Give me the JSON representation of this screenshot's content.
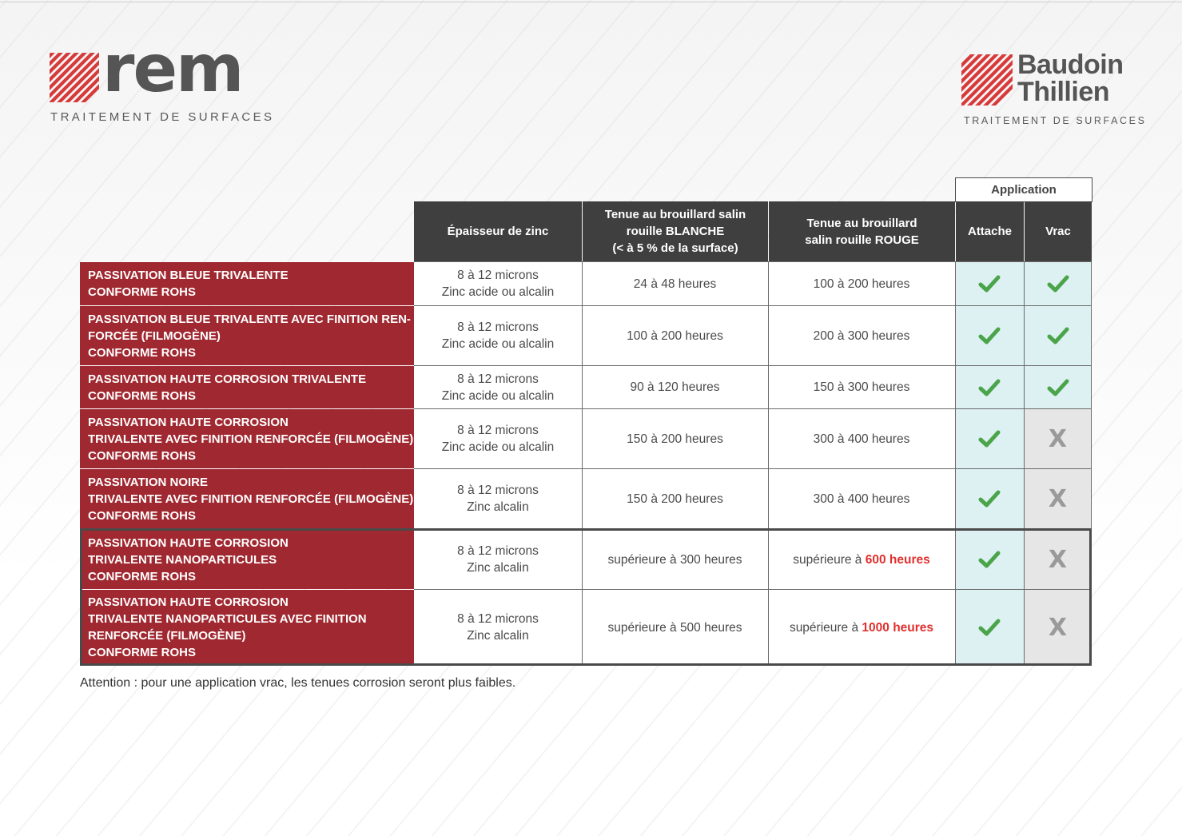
{
  "logos": {
    "rem": {
      "word": "rem",
      "subtitle": "TRAITEMENT DE SURFACES"
    },
    "baudoin": {
      "line1": "Baudoin",
      "line2": "Thillien",
      "subtitle": "TRAITEMENT DE SURFACES"
    }
  },
  "colors": {
    "brand_red": "#a02830",
    "header_dark": "#3f3f3f",
    "check_green": "#4aa54a",
    "highlight_red": "#e0302e",
    "application_bg": "#ddf0f2",
    "not_applicable_bg": "#e6e6e6"
  },
  "table": {
    "application_group": "Application",
    "headers": {
      "zinc": "Épaisseur de zinc",
      "blanche": [
        "Tenue au brouillard salin",
        "rouille BLANCHE",
        "(< à 5 % de la surface)"
      ],
      "rouge": [
        "Tenue au brouillard",
        "salin rouille ROUGE"
      ],
      "attache": "Attache",
      "vrac": "Vrac"
    },
    "rows": [
      {
        "name": [
          "PASSIVATION BLEUE TRIVALENTE",
          "CONFORME ROHS"
        ],
        "zinc": [
          "8 à 12 microns",
          "Zinc acide ou alcalin"
        ],
        "blanche": "24 à 48 heures",
        "rouge_prefix": "100 à 200 heures",
        "rouge_strong": "",
        "attache": "check",
        "vrac": "check"
      },
      {
        "name": [
          "PASSIVATION BLEUE TRIVALENTE AVEC FINITION REN-",
          "FORCÉE (FILMOGÈNE)",
          "CONFORME ROHS"
        ],
        "zinc": [
          "8 à 12 microns",
          "Zinc acide ou alcalin"
        ],
        "blanche": "100 à 200 heures",
        "rouge_prefix": "200 à 300 heures",
        "rouge_strong": "",
        "attache": "check",
        "vrac": "check"
      },
      {
        "name": [
          "PASSIVATION HAUTE CORROSION TRIVALENTE",
          "CONFORME ROHS"
        ],
        "zinc": [
          "8 à 12 microns",
          "Zinc acide ou alcalin"
        ],
        "blanche": "90 à 120 heures",
        "rouge_prefix": "150 à 300 heures",
        "rouge_strong": "",
        "attache": "check",
        "vrac": "check"
      },
      {
        "name": [
          "PASSIVATION HAUTE CORROSION",
          "TRIVALENTE AVEC FINITION RENFORCÉE (FILMOGÈNE)",
          "CONFORME ROHS"
        ],
        "zinc": [
          "8 à 12 microns",
          "Zinc acide ou alcalin"
        ],
        "blanche": "150 à 200 heures",
        "rouge_prefix": "300 à 400 heures",
        "rouge_strong": "",
        "attache": "check",
        "vrac": "X"
      },
      {
        "name": [
          "PASSIVATION NOIRE",
          "TRIVALENTE AVEC FINITION RENFORCÉE (FILMOGÈNE)",
          "CONFORME ROHS"
        ],
        "zinc": [
          "8 à 12 microns",
          "Zinc alcalin"
        ],
        "blanche": "150 à 200 heures",
        "rouge_prefix": "300 à 400 heures",
        "rouge_strong": "",
        "attache": "check",
        "vrac": "X"
      },
      {
        "name": [
          "PASSIVATION HAUTE CORROSION",
          "TRIVALENTE NANOPARTICULES",
          "CONFORME ROHS"
        ],
        "zinc": [
          "8 à 12 microns",
          "Zinc alcalin"
        ],
        "blanche": "supérieure à 300 heures",
        "rouge_prefix": "supérieure à ",
        "rouge_strong": "600 heures",
        "attache": "check",
        "vrac": "X"
      },
      {
        "name": [
          "PASSIVATION HAUTE CORROSION",
          "TRIVALENTE NANOPARTICULES AVEC FINITION",
          "RENFORCÉE (FILMOGÈNE)",
          "CONFORME ROHS"
        ],
        "zinc": [
          "8 à 12 microns",
          "Zinc alcalin"
        ],
        "blanche": "supérieure à 500 heures",
        "rouge_prefix": "supérieure à ",
        "rouge_strong": "1000 heures",
        "attache": "check",
        "vrac": "X"
      }
    ]
  },
  "footnote": "Attention : pour une application vrac, les tenues corrosion seront plus faibles."
}
